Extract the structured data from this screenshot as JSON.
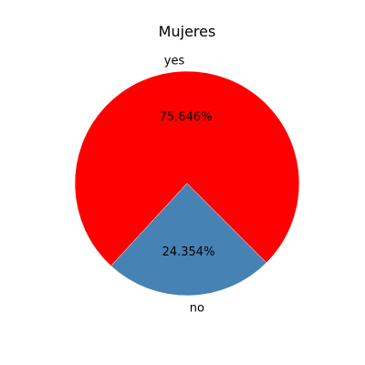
{
  "chart_data": {
    "type": "pie",
    "title": "Mujeres",
    "categories": [
      "yes",
      "no"
    ],
    "values": [
      75.646,
      24.354
    ],
    "value_labels": [
      "75.646%",
      "24.354%"
    ],
    "colors": [
      "#ff0000",
      "#4682b4"
    ],
    "startangle_degrees": -45,
    "direction": "counterclockwise",
    "wedge_edge_color": "#ffffff"
  }
}
